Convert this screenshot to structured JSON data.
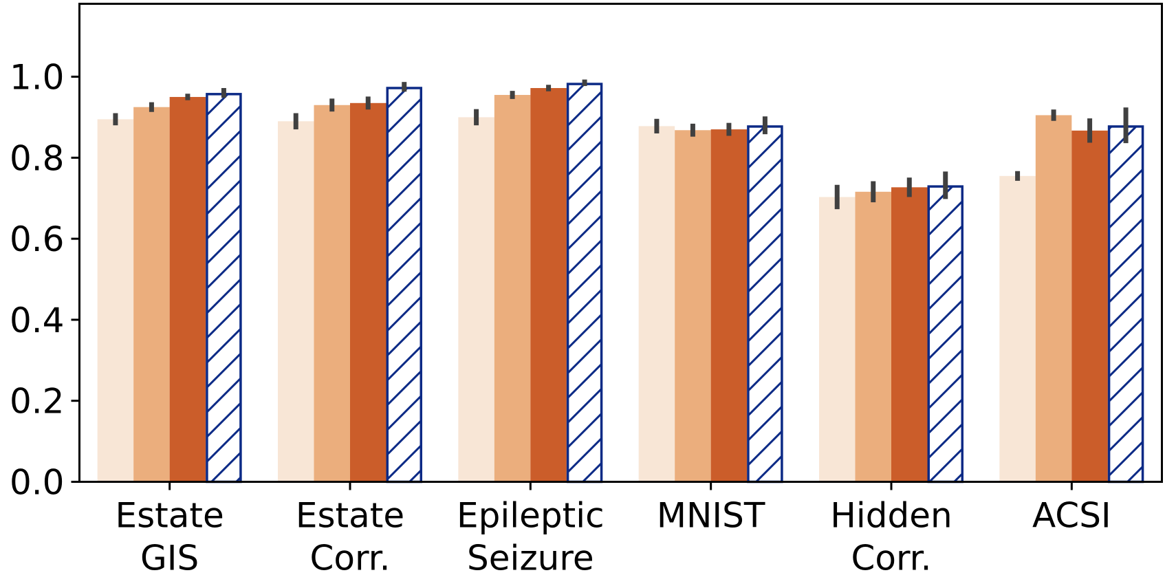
{
  "chart_data": {
    "type": "bar",
    "title": "",
    "xlabel": "",
    "ylabel": "",
    "ylim": [
      0,
      1.18
    ],
    "yticks": [
      "0.0",
      "0.2",
      "0.4",
      "0.6",
      "0.8",
      "1.0"
    ],
    "ytick_values": [
      0,
      0.2,
      0.4,
      0.6,
      0.8,
      1.0
    ],
    "categories": [
      [
        "Estate",
        "GIS"
      ],
      [
        "Estate",
        "Corr."
      ],
      [
        "Epileptic",
        "Seizure"
      ],
      [
        "MNIST"
      ],
      [
        "Hidden",
        "Corr."
      ],
      [
        "ACSI"
      ]
    ],
    "series": [
      {
        "name": "series-1",
        "color": "#f8e6d6",
        "hatch": false,
        "values": [
          0.895,
          0.89,
          0.9,
          0.878,
          0.703,
          0.755
        ],
        "errors": [
          0.015,
          0.02,
          0.02,
          0.018,
          0.03,
          0.012
        ]
      },
      {
        "name": "series-2",
        "color": "#ebae7d",
        "hatch": false,
        "values": [
          0.925,
          0.93,
          0.955,
          0.868,
          0.716,
          0.905
        ],
        "errors": [
          0.012,
          0.016,
          0.01,
          0.016,
          0.026,
          0.014
        ]
      },
      {
        "name": "series-3",
        "color": "#cb5d2a",
        "hatch": false,
        "values": [
          0.95,
          0.935,
          0.972,
          0.87,
          0.727,
          0.867
        ],
        "errors": [
          0.008,
          0.016,
          0.008,
          0.016,
          0.024,
          0.03
        ]
      },
      {
        "name": "series-4",
        "color": "#ffffff",
        "edge": "#0c2a86",
        "hatch": true,
        "values": [
          0.96,
          0.975,
          0.985,
          0.88,
          0.732,
          0.88
        ],
        "errors": [
          0.012,
          0.012,
          0.008,
          0.022,
          0.034,
          0.044
        ]
      }
    ],
    "error_bar_color": "#404040",
    "grid": false,
    "legend": "none"
  }
}
